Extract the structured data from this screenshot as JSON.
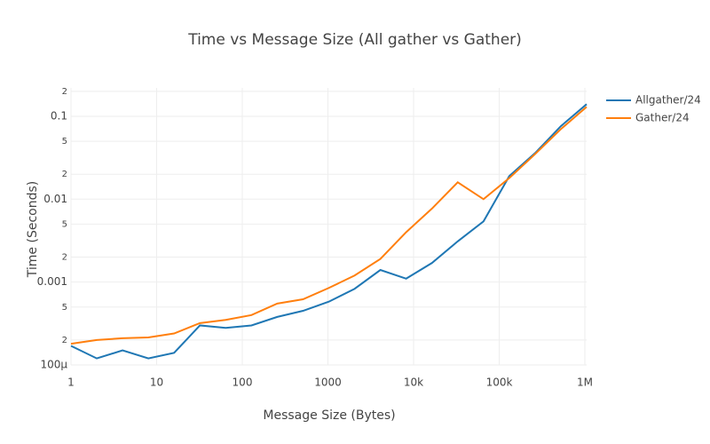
{
  "chart_data": {
    "type": "line",
    "title": "Time vs Message Size (All gather vs Gather)",
    "x_label": "Message Size (Bytes)",
    "y_label": "Time (Seconds)",
    "x": [
      1,
      2,
      4,
      8,
      16,
      32,
      64,
      128,
      256,
      512,
      1024,
      2048,
      4096,
      8192,
      16384,
      32768,
      65536,
      131072,
      262144,
      524288,
      1048576
    ],
    "series": [
      {
        "name": "Allgather/24",
        "color": "#1f77b4",
        "values": [
          0.00017,
          0.00012,
          0.00015,
          0.00012,
          0.00014,
          0.0003,
          0.00028,
          0.0003,
          0.00038,
          0.00045,
          0.00058,
          0.00083,
          0.0014,
          0.0011,
          0.0017,
          0.0031,
          0.0054,
          0.019,
          0.036,
          0.076,
          0.14
        ]
      },
      {
        "name": "Gather/24",
        "color": "#ff7f0e",
        "values": [
          0.00018,
          0.0002,
          0.00021,
          0.000215,
          0.00024,
          0.00032,
          0.00035,
          0.0004,
          0.00055,
          0.00062,
          0.00085,
          0.0012,
          0.0019,
          0.004,
          0.0077,
          0.016,
          0.01,
          0.018,
          0.035,
          0.07,
          0.13
        ]
      }
    ],
    "xlim": [
      1,
      1048576
    ],
    "ylim": [
      0.0001,
      0.22
    ],
    "xscale": "log",
    "yscale": "log",
    "xticks": [
      1,
      10,
      100,
      1000,
      {
        "value": 10000,
        "label": "10k"
      },
      {
        "value": 100000,
        "label": "100k"
      },
      {
        "value": 1000000,
        "label": "1M"
      }
    ],
    "yticks": [
      {
        "value": 0.0001,
        "label": "100µ"
      },
      {
        "value": 0.0002,
        "label": "2"
      },
      {
        "value": 0.0005,
        "label": "5"
      },
      0.001,
      {
        "value": 0.002,
        "label": "2"
      },
      {
        "value": 0.005,
        "label": "5"
      },
      0.01,
      {
        "value": 0.02,
        "label": "2"
      },
      {
        "value": 0.05,
        "label": "5"
      },
      0.1,
      {
        "value": 0.2,
        "label": "2"
      }
    ],
    "grid": true,
    "legend": "top-right"
  }
}
